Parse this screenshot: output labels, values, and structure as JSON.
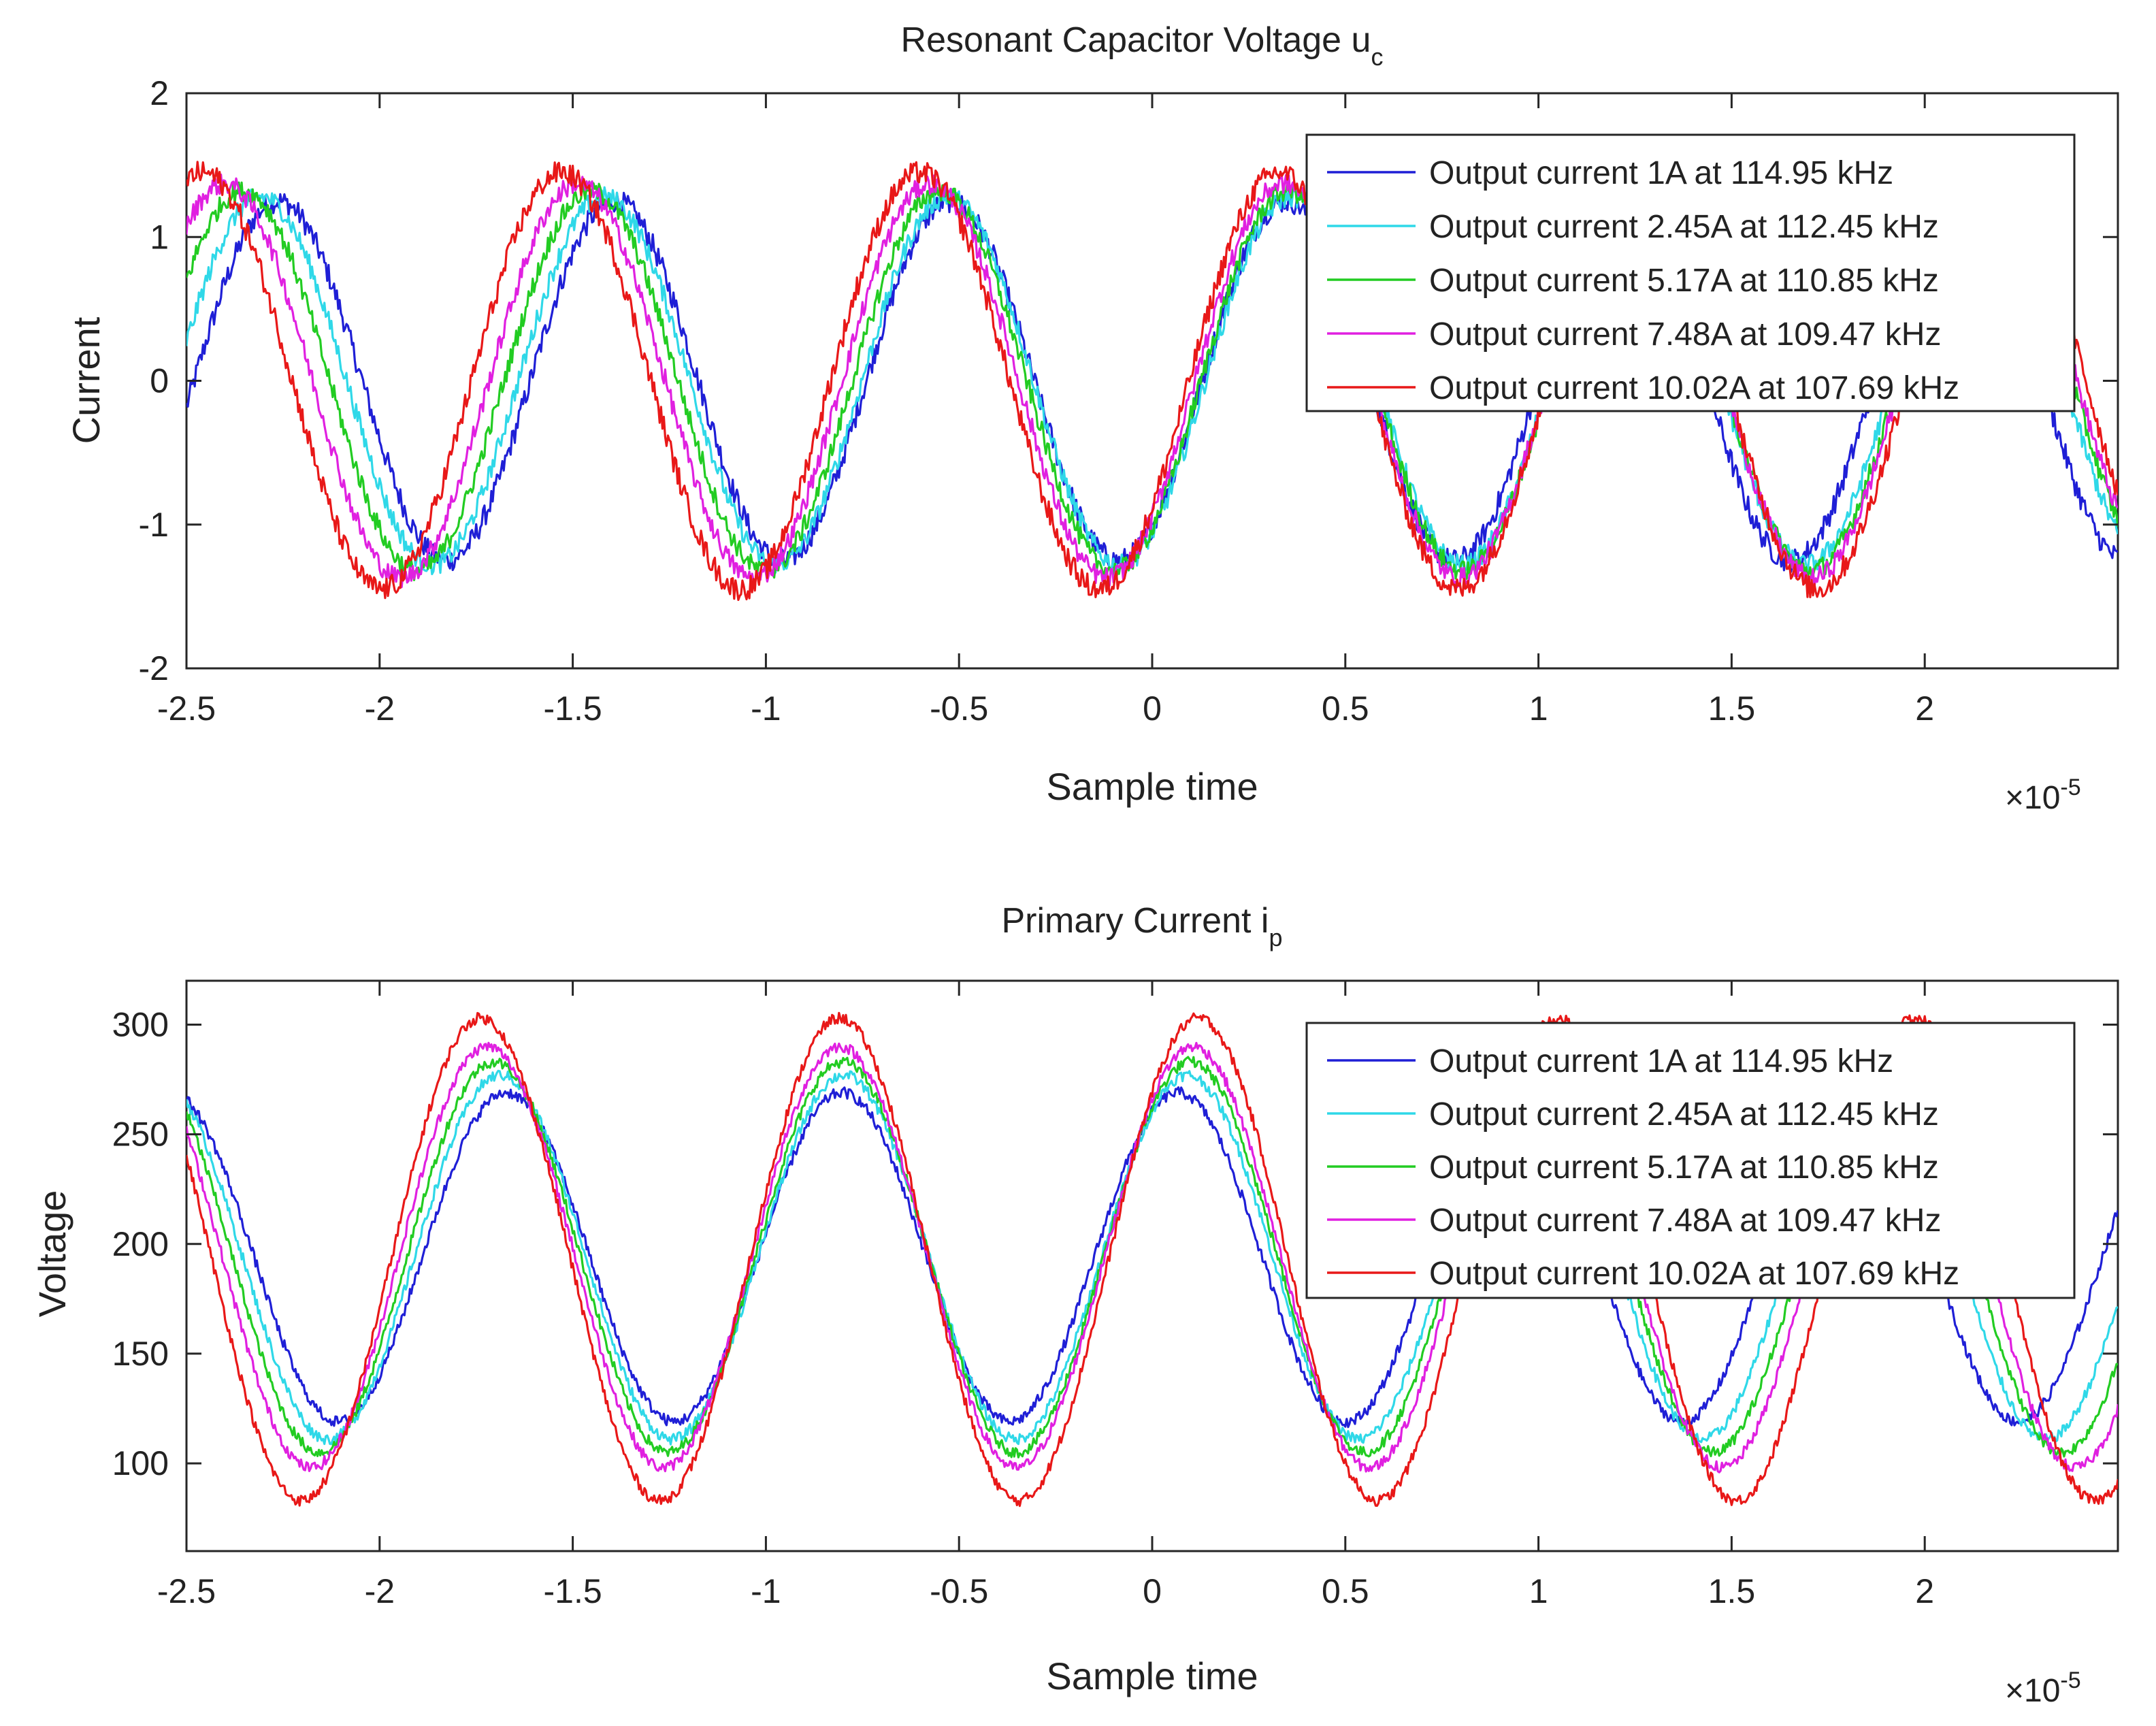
{
  "chart_data": [
    {
      "type": "line",
      "title": "Resonant Capacitor Voltage u",
      "title_subscript": "c",
      "xlabel": "Sample time",
      "ylabel": "Current",
      "x_exponent_base": "×10",
      "x_exponent_power": "-5",
      "xlim": [
        -2.5,
        2.5
      ],
      "ylim": [
        -2,
        2
      ],
      "xticks": [
        -2.5,
        -2,
        -1.5,
        -1,
        -0.5,
        0,
        0.5,
        1,
        1.5,
        2
      ],
      "xtick_labels": [
        "-2.5",
        "-2",
        "-1.5",
        "-1",
        "-0.5",
        "0",
        "0.5",
        "1",
        "1.5",
        "2"
      ],
      "yticks": [
        -2,
        -1,
        0,
        1,
        2
      ],
      "ytick_labels": [
        "-2",
        "-1",
        "0",
        "1",
        "2"
      ],
      "grid": false,
      "legend_position": "top-right",
      "series": [
        {
          "name": "Output current 1A at 114.95 kHz",
          "color": "#1f1fd6",
          "frequency_khz": 114.95,
          "amplitude": 1.25,
          "offset": 0,
          "zero_cross_rise": -2.48,
          "noise": 0.08
        },
        {
          "name": "Output current 2.45A at 112.45 kHz",
          "color": "#2fd8e8",
          "frequency_khz": 112.45,
          "amplitude": 1.28,
          "offset": 0,
          "zero_cross_rise": -2.53,
          "noise": 0.07
        },
        {
          "name": "Output current 5.17A at 110.85 kHz",
          "color": "#22cc22",
          "frequency_khz": 110.85,
          "amplitude": 1.32,
          "offset": 0,
          "zero_cross_rise": -2.58,
          "noise": 0.07
        },
        {
          "name": "Output current 7.48A at 109.47 kHz",
          "color": "#e020e0",
          "frequency_khz": 109.47,
          "amplitude": 1.37,
          "offset": 0,
          "zero_cross_rise": -2.63,
          "noise": 0.07
        },
        {
          "name": "Output current 10.02A at 107.69 kHz",
          "color": "#e81818",
          "frequency_khz": 107.69,
          "amplitude": 1.45,
          "offset": 0,
          "zero_cross_rise": -2.69,
          "noise": 0.08
        }
      ]
    },
    {
      "type": "line",
      "title": "Primary Current i",
      "title_subscript": "p",
      "xlabel": "Sample time",
      "ylabel": "Voltage",
      "x_exponent_base": "×10",
      "x_exponent_power": "-5",
      "xlim": [
        -2.5,
        2.5
      ],
      "ylim": [
        60,
        320
      ],
      "xticks": [
        -2.5,
        -2,
        -1.5,
        -1,
        -0.5,
        0,
        0.5,
        1,
        1.5,
        2
      ],
      "xtick_labels": [
        "-2.5",
        "-2",
        "-1.5",
        "-1",
        "-0.5",
        "0",
        "0.5",
        "1",
        "1.5",
        "2"
      ],
      "yticks": [
        100,
        150,
        200,
        250,
        300
      ],
      "ytick_labels": [
        "100",
        "150",
        "200",
        "250",
        "300"
      ],
      "grid": false,
      "legend_position": "top-right",
      "series": [
        {
          "name": "Output current 1A at 114.95 kHz",
          "color": "#1f1fd6",
          "frequency_khz": 114.95,
          "amplitude": 75,
          "offset": 194,
          "zero_cross_rise": -1.89,
          "noise": 2.5
        },
        {
          "name": "Output current 2.45A at 112.45 kHz",
          "color": "#2fd8e8",
          "frequency_khz": 112.45,
          "amplitude": 83,
          "offset": 194,
          "zero_cross_rise": -1.91,
          "noise": 2.5
        },
        {
          "name": "Output current 5.17A at 110.85 kHz",
          "color": "#22cc22",
          "frequency_khz": 110.85,
          "amplitude": 89,
          "offset": 194,
          "zero_cross_rise": -1.93,
          "noise": 2.5
        },
        {
          "name": "Output current 7.48A at 109.47 kHz",
          "color": "#e020e0",
          "frequency_khz": 109.47,
          "amplitude": 96,
          "offset": 194,
          "zero_cross_rise": -1.95,
          "noise": 2.5
        },
        {
          "name": "Output current 10.02A at 107.69 kHz",
          "color": "#e81818",
          "frequency_khz": 107.69,
          "amplitude": 110,
          "offset": 193,
          "zero_cross_rise": -1.97,
          "noise": 2.5
        }
      ]
    }
  ]
}
